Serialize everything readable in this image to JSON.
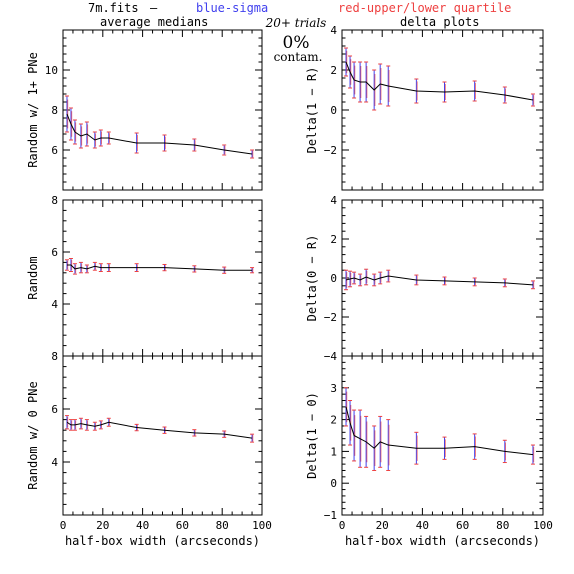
{
  "header": {
    "file_label": "7m.fits",
    "dash": "—",
    "blue_label": "blue-sigma",
    "red_label": "red-upper/lower quartile",
    "left_title": "average medians",
    "right_title": "delta plots",
    "trials": "20+ trials",
    "percent": "0%",
    "contam": "contam."
  },
  "colors": {
    "blue": "#4040ee",
    "red": "#ee4040",
    "line": "#000000"
  },
  "chart_data": [
    {
      "type": "line",
      "panel": "left-top",
      "ylabel": "Random w/ 1+ PNe",
      "xlabel": "",
      "xlim": [
        0,
        100
      ],
      "ylim": [
        4,
        12
      ],
      "yticks": [
        6,
        8,
        10
      ],
      "xticks": [],
      "x": [
        2,
        4,
        6,
        9,
        12,
        16,
        19,
        23,
        37,
        51,
        66,
        81,
        95
      ],
      "y": [
        7.8,
        7.3,
        6.9,
        6.7,
        6.8,
        6.5,
        6.6,
        6.6,
        6.35,
        6.35,
        6.25,
        6.0,
        5.8
      ],
      "err": [
        0.9,
        0.8,
        0.6,
        0.6,
        0.6,
        0.4,
        0.4,
        0.3,
        0.5,
        0.4,
        0.3,
        0.25,
        0.2
      ]
    },
    {
      "type": "line",
      "panel": "right-top",
      "ylabel": "Delta(1 − R)",
      "xlabel": "",
      "xlim": [
        0,
        100
      ],
      "ylim": [
        -4,
        4
      ],
      "yticks": [
        -2,
        0,
        2,
        4
      ],
      "xticks": [],
      "x": [
        2,
        4,
        6,
        9,
        12,
        16,
        19,
        23,
        37,
        51,
        66,
        81,
        95
      ],
      "y": [
        2.4,
        1.9,
        1.5,
        1.4,
        1.4,
        1.0,
        1.3,
        1.2,
        0.95,
        0.9,
        0.95,
        0.75,
        0.5
      ],
      "err": [
        0.7,
        0.8,
        0.9,
        1.0,
        1.0,
        1.0,
        1.0,
        1.0,
        0.6,
        0.5,
        0.5,
        0.4,
        0.3
      ]
    },
    {
      "type": "line",
      "panel": "left-middle",
      "ylabel": "Random",
      "xlabel": "",
      "xlim": [
        0,
        100
      ],
      "ylim": [
        2,
        8
      ],
      "yticks": [
        4,
        6,
        8
      ],
      "xticks": [],
      "x": [
        2,
        4,
        6,
        9,
        12,
        16,
        19,
        23,
        37,
        51,
        66,
        81,
        95
      ],
      "y": [
        5.5,
        5.5,
        5.35,
        5.4,
        5.35,
        5.45,
        5.4,
        5.4,
        5.4,
        5.4,
        5.35,
        5.3,
        5.3
      ],
      "err": [
        0.2,
        0.25,
        0.2,
        0.2,
        0.15,
        0.15,
        0.15,
        0.15,
        0.15,
        0.12,
        0.12,
        0.12,
        0.1
      ]
    },
    {
      "type": "line",
      "panel": "right-middle",
      "ylabel": "Delta(0 − R)",
      "xlabel": "",
      "xlim": [
        0,
        100
      ],
      "ylim": [
        -4,
        4
      ],
      "yticks": [
        -4,
        -2,
        0,
        2,
        4
      ],
      "xticks": [],
      "x": [
        2,
        4,
        6,
        9,
        12,
        16,
        19,
        23,
        37,
        51,
        66,
        81,
        95
      ],
      "y": [
        -0.1,
        -0.05,
        0.0,
        -0.1,
        0.05,
        -0.1,
        0.0,
        0.1,
        -0.1,
        -0.15,
        -0.2,
        -0.25,
        -0.35
      ],
      "err": [
        0.5,
        0.4,
        0.3,
        0.3,
        0.4,
        0.3,
        0.3,
        0.3,
        0.25,
        0.2,
        0.2,
        0.2,
        0.2
      ]
    },
    {
      "type": "line",
      "panel": "left-bottom",
      "ylabel": "Random w/ 0 PNe",
      "xlabel": "half-box width (arcseconds)",
      "xlim": [
        0,
        100
      ],
      "ylim": [
        2,
        8
      ],
      "yticks": [
        4,
        6,
        8
      ],
      "xticks": [
        0,
        20,
        40,
        60,
        80,
        100
      ],
      "x": [
        2,
        4,
        6,
        9,
        12,
        16,
        19,
        23,
        37,
        51,
        66,
        81,
        95
      ],
      "y": [
        5.5,
        5.4,
        5.4,
        5.45,
        5.4,
        5.35,
        5.4,
        5.5,
        5.3,
        5.2,
        5.1,
        5.05,
        4.9
      ],
      "err": [
        0.25,
        0.2,
        0.2,
        0.2,
        0.2,
        0.15,
        0.15,
        0.15,
        0.12,
        0.12,
        0.12,
        0.12,
        0.15
      ]
    },
    {
      "type": "line",
      "panel": "right-bottom",
      "ylabel": "Delta(1 − 0)",
      "xlabel": "half-box width (arcseconds)",
      "xlim": [
        0,
        100
      ],
      "ylim": [
        -1,
        4
      ],
      "yticks": [
        -1,
        0,
        1,
        2,
        3
      ],
      "xticks": [
        0,
        20,
        40,
        60,
        80,
        100
      ],
      "x": [
        2,
        4,
        6,
        9,
        12,
        16,
        19,
        23,
        37,
        51,
        66,
        81,
        95
      ],
      "y": [
        2.4,
        1.9,
        1.5,
        1.4,
        1.3,
        1.1,
        1.3,
        1.2,
        1.1,
        1.1,
        1.15,
        1.0,
        0.9
      ],
      "err": [
        0.6,
        0.7,
        0.8,
        0.9,
        0.8,
        0.7,
        0.8,
        0.8,
        0.5,
        0.35,
        0.4,
        0.35,
        0.3
      ]
    }
  ]
}
